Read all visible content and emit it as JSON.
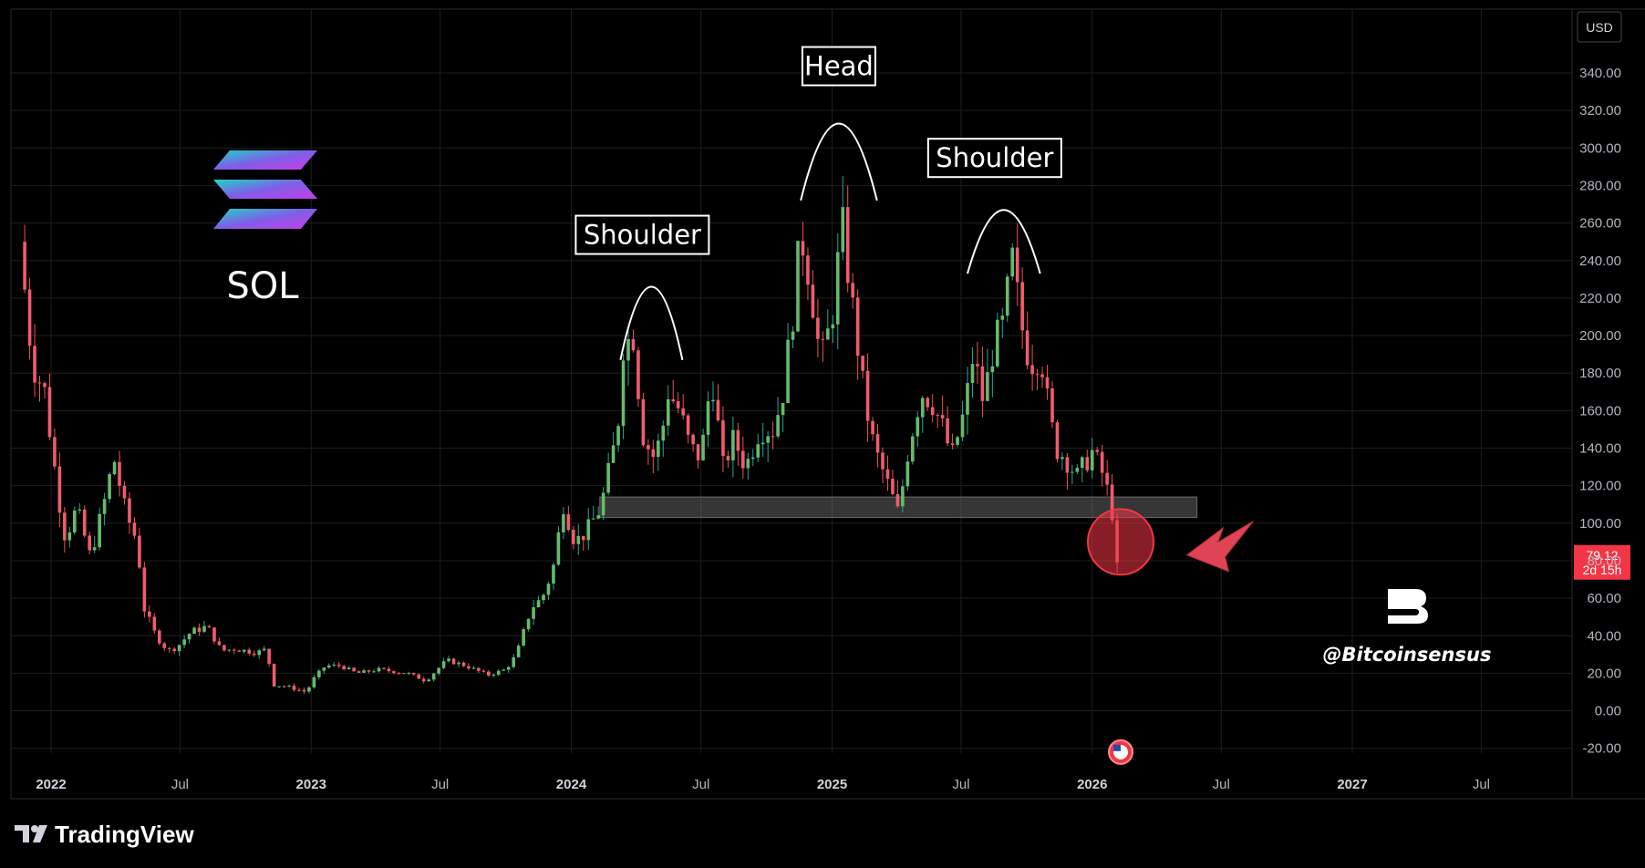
{
  "chart_data": {
    "type": "candlestick",
    "title": "",
    "asset": "SOL",
    "currency": "USD",
    "y_axis": {
      "range": [
        -25,
        355
      ],
      "ticks": [
        "340.00",
        "320.00",
        "300.00",
        "280.00",
        "260.00",
        "240.00",
        "220.00",
        "200.00",
        "180.00",
        "160.00",
        "140.00",
        "120.00",
        "100.00",
        "80.00",
        "60.00",
        "40.00",
        "20.00",
        "0.00",
        "-20.00"
      ]
    },
    "x_axis": {
      "range": [
        "2021-11-20",
        "2027-09-01"
      ],
      "ticks": [
        {
          "date": "2022-01-01",
          "label": "2022",
          "bold": true
        },
        {
          "date": "2022-07-01",
          "label": "Jul",
          "bold": false
        },
        {
          "date": "2023-01-01",
          "label": "2023",
          "bold": true
        },
        {
          "date": "2023-07-01",
          "label": "Jul",
          "bold": false
        },
        {
          "date": "2024-01-01",
          "label": "2024",
          "bold": true
        },
        {
          "date": "2024-07-01",
          "label": "Jul",
          "bold": false
        },
        {
          "date": "2025-01-01",
          "label": "2025",
          "bold": true
        },
        {
          "date": "2025-07-01",
          "label": "Jul",
          "bold": false
        },
        {
          "date": "2026-01-01",
          "label": "2026",
          "bold": true
        },
        {
          "date": "2026-07-01",
          "label": "Jul",
          "bold": false
        },
        {
          "date": "2027-01-01",
          "label": "2027",
          "bold": true
        },
        {
          "date": "2027-07-01",
          "label": "Jul",
          "bold": false
        }
      ]
    },
    "grid": true,
    "price_path": [
      [
        "2021-11-22",
        250
      ],
      [
        "2021-12-10",
        185
      ],
      [
        "2021-12-27",
        170
      ],
      [
        "2022-01-15",
        115
      ],
      [
        "2022-01-25",
        92
      ],
      [
        "2022-02-10",
        108
      ],
      [
        "2022-03-01",
        82
      ],
      [
        "2022-03-20",
        110
      ],
      [
        "2022-04-03",
        135
      ],
      [
        "2022-04-20",
        105
      ],
      [
        "2022-05-06",
        90
      ],
      [
        "2022-05-15",
        55
      ],
      [
        "2022-06-01",
        40
      ],
      [
        "2022-06-18",
        32
      ],
      [
        "2022-07-01",
        34
      ],
      [
        "2022-07-20",
        42
      ],
      [
        "2022-08-12",
        45
      ],
      [
        "2022-09-01",
        32
      ],
      [
        "2022-09-20",
        33
      ],
      [
        "2022-10-20",
        31
      ],
      [
        "2022-11-05",
        33
      ],
      [
        "2022-11-10",
        14
      ],
      [
        "2022-12-01",
        13
      ],
      [
        "2022-12-29",
        10
      ],
      [
        "2023-01-10",
        18
      ],
      [
        "2023-01-25",
        24
      ],
      [
        "2023-02-15",
        24
      ],
      [
        "2023-03-10",
        20
      ],
      [
        "2023-04-10",
        22
      ],
      [
        "2023-05-20",
        20
      ],
      [
        "2023-06-15",
        16
      ],
      [
        "2023-07-14",
        27
      ],
      [
        "2023-08-10",
        24
      ],
      [
        "2023-09-10",
        19
      ],
      [
        "2023-10-05",
        22
      ],
      [
        "2023-10-20",
        30
      ],
      [
        "2023-11-10",
        55
      ],
      [
        "2023-11-25",
        60
      ],
      [
        "2023-12-10",
        75
      ],
      [
        "2023-12-25",
        110
      ],
      [
        "2024-01-10",
        90
      ],
      [
        "2024-01-25",
        95
      ],
      [
        "2024-02-15",
        108
      ],
      [
        "2024-02-28",
        130
      ],
      [
        "2024-03-10",
        150
      ],
      [
        "2024-03-18",
        195
      ],
      [
        "2024-04-01",
        200
      ],
      [
        "2024-04-14",
        148
      ],
      [
        "2024-04-28",
        135
      ],
      [
        "2024-05-10",
        145
      ],
      [
        "2024-05-20",
        170
      ],
      [
        "2024-06-05",
        160
      ],
      [
        "2024-06-20",
        140
      ],
      [
        "2024-07-05",
        135
      ],
      [
        "2024-07-20",
        180
      ],
      [
        "2024-08-05",
        130
      ],
      [
        "2024-08-20",
        145
      ],
      [
        "2024-09-06",
        130
      ],
      [
        "2024-09-25",
        150
      ],
      [
        "2024-10-15",
        150
      ],
      [
        "2024-10-28",
        170
      ],
      [
        "2024-11-12",
        215
      ],
      [
        "2024-11-22",
        255
      ],
      [
        "2024-12-05",
        230
      ],
      [
        "2024-12-20",
        185
      ],
      [
        "2025-01-05",
        210
      ],
      [
        "2025-01-19",
        260
      ],
      [
        "2025-02-01",
        220
      ],
      [
        "2025-02-20",
        165
      ],
      [
        "2025-03-05",
        140
      ],
      [
        "2025-03-20",
        125
      ],
      [
        "2025-04-08",
        105
      ],
      [
        "2025-04-22",
        140
      ],
      [
        "2025-05-10",
        170
      ],
      [
        "2025-05-25",
        165
      ],
      [
        "2025-06-10",
        150
      ],
      [
        "2025-06-22",
        135
      ],
      [
        "2025-07-10",
        160
      ],
      [
        "2025-07-22",
        190
      ],
      [
        "2025-08-05",
        165
      ],
      [
        "2025-08-20",
        195
      ],
      [
        "2025-09-01",
        205
      ],
      [
        "2025-09-15",
        240
      ],
      [
        "2025-09-28",
        205
      ],
      [
        "2025-10-10",
        185
      ],
      [
        "2025-10-25",
        190
      ],
      [
        "2025-11-05",
        160
      ],
      [
        "2025-11-15",
        140
      ],
      [
        "2025-11-28",
        135
      ],
      [
        "2025-12-15",
        125
      ],
      [
        "2026-01-05",
        138
      ],
      [
        "2026-01-18",
        128
      ],
      [
        "2026-01-28",
        115
      ],
      [
        "2026-02-05",
        100
      ],
      [
        "2026-02-08",
        79.12
      ]
    ],
    "patterns": [
      {
        "label": "Shoulder",
        "start": "2024-03-10",
        "end": "2024-06-05",
        "low": 187,
        "high": 226
      },
      {
        "label": "Head",
        "start": "2024-11-18",
        "end": "2025-03-05",
        "low": 272,
        "high": 313
      },
      {
        "label": "Shoulder",
        "start": "2025-07-10",
        "end": "2025-10-20",
        "low": 233,
        "high": 267
      }
    ],
    "support_zone": {
      "start": "2024-02-10",
      "end": "2026-05-28",
      "low": 103,
      "high": 114
    },
    "highlight_circle": {
      "date": "2026-02-10",
      "price": 90
    },
    "arrow": {
      "from_date": "2026-08-15",
      "from_price": 101,
      "to_date": "2026-05-01",
      "to_price": 83
    },
    "last_price": {
      "value": "79.12",
      "countdown": "2d 15h"
    },
    "event_marker": {
      "date": "2026-02-10",
      "price": -22
    }
  },
  "brand": {
    "name": "TradingView",
    "logo_icon": "tradingview-logo-icon"
  },
  "asset_badge": {
    "label": "SOL",
    "icon": "solana-logo-icon"
  },
  "watermark": {
    "handle": "@Bitcoinsensus",
    "icon": "bitcoinsensus-logo-icon"
  },
  "colors": {
    "up": "#26a69a",
    "down": "#ef5350",
    "up_body": "#66bb6a",
    "down_body": "#f05c6e",
    "grid": "#1e1e1e",
    "background": "#000000",
    "price_label": "#f23645"
  }
}
